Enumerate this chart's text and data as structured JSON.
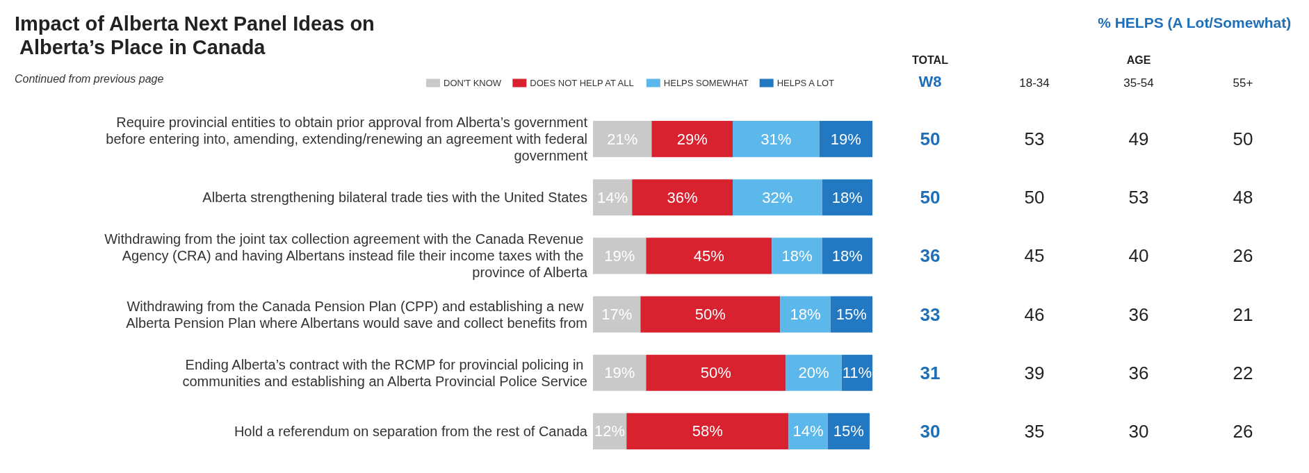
{
  "chart_data": [
    {
      "type": "bar",
      "orientation": "horizontal",
      "stacked": true,
      "title": "Impact of Alberta Next Panel Ideas on Alberta’s Place in Canada",
      "subtitle": "Continued from previous page",
      "legend": "top",
      "tick_labels": "y",
      "categories": [
        "Require provincial entities to obtain prior approval from Alberta’s government before entering into, amending, extending/renewing an agreement with federal government",
        "Alberta strengthening bilateral trade ties with the United States",
        "Withdrawing from the joint tax collection agreement with the Canada Revenue Agency (CRA) and having Albertans instead file their income taxes with the province of Alberta",
        "Withdrawing from the Canada Pension Plan (CPP) and establishing a new Alberta Pension Plan where Albertans would save and collect benefits from",
        "Ending Alberta’s contract with the RCMP for provincial policing in communities and establishing an Alberta Provincial Police Service",
        "Hold a referendum on separation from the rest of Canada"
      ],
      "series": [
        {
          "name": "DON'T KNOW",
          "color": "#c9c9c9",
          "values": [
            21,
            14,
            19,
            17,
            19,
            12
          ],
          "value_labels": [
            "21%",
            "14%",
            "19%",
            "17%",
            "19%",
            "12%"
          ]
        },
        {
          "name": "DOES NOT HELP AT ALL",
          "color": "#d9222f",
          "values": [
            29,
            36,
            45,
            50,
            50,
            58
          ],
          "value_labels": [
            "29%",
            "36%",
            "45%",
            "50%",
            "50%",
            "58%"
          ]
        },
        {
          "name": "HELPS SOMEWHAT",
          "color": "#5cb8ea",
          "values": [
            31,
            32,
            18,
            18,
            20,
            14
          ],
          "value_labels": [
            "31%",
            "32%",
            "18%",
            "18%",
            "20%",
            "14%"
          ]
        },
        {
          "name": "HELPS A LOT",
          "color": "#2379c1",
          "values": [
            19,
            18,
            18,
            15,
            11,
            15
          ],
          "value_labels": [
            "19%",
            "18%",
            "18%",
            "15%",
            "11%",
            "15%"
          ]
        }
      ]
    },
    {
      "type": "heatmap",
      "title": "% HELPS (A Lot/Somewhat)",
      "annotations": [
        "TOTAL",
        "AGE"
      ],
      "data_labels": true,
      "tick_labels": "x",
      "categories": [
        "W8",
        "18-34",
        "35-54",
        "55+"
      ],
      "y_categories": [
        null,
        null,
        null,
        null,
        null,
        null
      ],
      "cells": [
        [
          50,
          53,
          49,
          50
        ],
        [
          50,
          50,
          53,
          48
        ],
        [
          36,
          45,
          40,
          26
        ],
        [
          33,
          46,
          36,
          21
        ],
        [
          31,
          39,
          36,
          22
        ],
        [
          30,
          35,
          30,
          26
        ]
      ]
    }
  ]
}
